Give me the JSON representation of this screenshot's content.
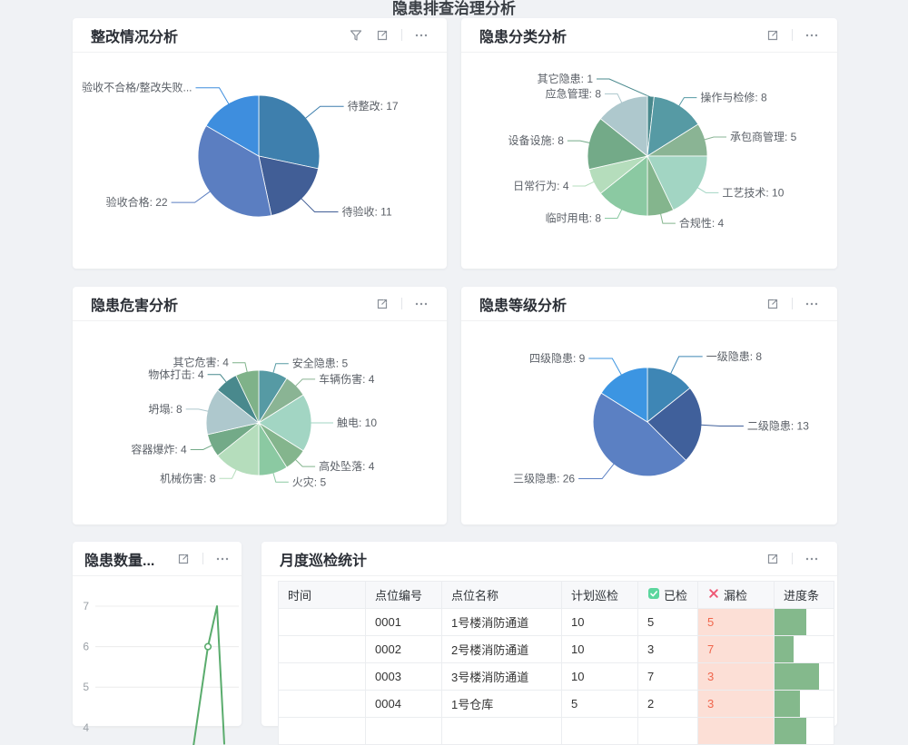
{
  "page": {
    "top_partial_title": "隐患排查治理分析",
    "background": "#f0f2f5"
  },
  "theme": {
    "missed_bg": "#fcdfd6",
    "missed_text": "#f0664c",
    "bar_color": "#84b98c",
    "check_icon_color": "#5cd69e",
    "x_icon_color": "#ee5874",
    "icon_gray": "#8a9099"
  },
  "cards": {
    "rectification": {
      "title": "整改情况分析",
      "chart": {
        "type": "pie",
        "slices": [
          {
            "label": "待整改",
            "value": 17,
            "color": "#3e7fad"
          },
          {
            "label": "待验收",
            "value": 11,
            "color": "#415e96"
          },
          {
            "label": "验收合格",
            "value": 22,
            "color": "#5b7ec1"
          },
          {
            "label": "验收不合格/整改失败...",
            "value": null,
            "est_value": 10,
            "color": "#3e8ede"
          }
        ]
      }
    },
    "classification": {
      "title": "隐患分类分析",
      "chart": {
        "type": "pie",
        "slices": [
          {
            "label": "其它隐患",
            "value": 1,
            "color": "#49898d"
          },
          {
            "label": "操作与检修",
            "value": 8,
            "color": "#569aa4"
          },
          {
            "label": "承包商管理",
            "value": 5,
            "color": "#8ab494"
          },
          {
            "label": "工艺技术",
            "value": 10,
            "color": "#a2d5c3"
          },
          {
            "label": "合规性",
            "value": 4,
            "color": "#84b58d"
          },
          {
            "label": "临时用电",
            "value": 8,
            "color": "#8bc9a2"
          },
          {
            "label": "日常行为",
            "value": 4,
            "color": "#b5ddbc"
          },
          {
            "label": "设备设施",
            "value": 8,
            "color": "#73aa88"
          },
          {
            "label": "应急管理",
            "value": 8,
            "color": "#aec8cd"
          }
        ]
      }
    },
    "harm": {
      "title": "隐患危害分析",
      "chart": {
        "type": "pie",
        "slices": [
          {
            "label": "安全隐患",
            "value": 5,
            "color": "#569aa4"
          },
          {
            "label": "车辆伤害",
            "value": 4,
            "color": "#8ab494"
          },
          {
            "label": "触电",
            "value": 10,
            "color": "#a2d5c3"
          },
          {
            "label": "高处坠落",
            "value": 4,
            "color": "#84b58d"
          },
          {
            "label": "火灾",
            "value": 5,
            "color": "#8bc9a2"
          },
          {
            "label": "机械伤害",
            "value": 8,
            "color": "#b5ddbc"
          },
          {
            "label": "容器爆炸",
            "value": 4,
            "color": "#73aa88"
          },
          {
            "label": "坍塌",
            "value": 8,
            "color": "#aec8cd"
          },
          {
            "label": "物体打击",
            "value": 4,
            "color": "#49898d"
          },
          {
            "label": "其它危害",
            "value": 4,
            "color": "#7fb289"
          }
        ]
      }
    },
    "level": {
      "title": "隐患等级分析",
      "chart": {
        "type": "pie",
        "slices": [
          {
            "label": "一级隐患",
            "value": 8,
            "color": "#3e86b5"
          },
          {
            "label": "二级隐患",
            "value": 13,
            "color": "#40609b"
          },
          {
            "label": "三级隐患",
            "value": 26,
            "color": "#5b80c3"
          },
          {
            "label": "四级隐患",
            "value": 9,
            "color": "#3c95e2"
          }
        ]
      }
    },
    "quantity": {
      "title": "隐患数量...",
      "chart": {
        "type": "line",
        "color": "#5aac6d",
        "grid": true,
        "y_ticks": [
          7,
          6,
          5,
          4
        ],
        "points": [
          {
            "xf": 0.684,
            "v": 3.55
          },
          {
            "xf": 0.785,
            "v": 6,
            "marker": true
          },
          {
            "xf": 0.848,
            "v": 7
          },
          {
            "xf": 0.899,
            "v": 3.6
          }
        ]
      }
    },
    "monthly": {
      "title": "月度巡检统计",
      "table": {
        "columns": [
          {
            "label": "时间"
          },
          {
            "label": "点位编号"
          },
          {
            "label": "点位名称"
          },
          {
            "label": "计划巡检"
          },
          {
            "label": "已检",
            "icon": "check"
          },
          {
            "label": "漏检",
            "icon": "x"
          },
          {
            "label": "进度条"
          }
        ],
        "rows": [
          {
            "time": "",
            "point_no": "0001",
            "point_name": "1号楼消防通道",
            "planned": "10",
            "checked": "5",
            "missed": "5",
            "progress": 0.5
          },
          {
            "time": "",
            "point_no": "0002",
            "point_name": "2号楼消防通道",
            "planned": "10",
            "checked": "3",
            "missed": "7",
            "progress": 0.3
          },
          {
            "time": "",
            "point_no": "0003",
            "point_name": "3号楼消防通道",
            "planned": "10",
            "checked": "7",
            "missed": "3",
            "progress": 0.7
          },
          {
            "time": "",
            "point_no": "0004",
            "point_name": "1号仓库",
            "planned": "5",
            "checked": "2",
            "missed": "3",
            "progress": 0.4
          },
          {
            "time": "",
            "point_no": "",
            "point_name": "",
            "planned": "",
            "checked": "",
            "missed": "",
            "progress": 0.5
          }
        ]
      }
    }
  }
}
